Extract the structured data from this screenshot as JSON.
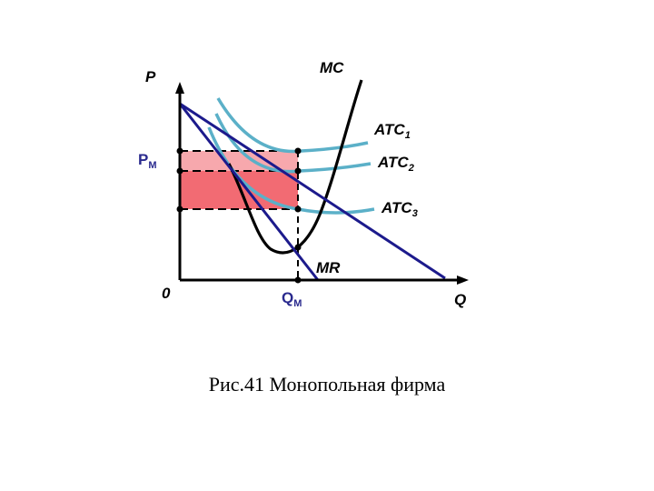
{
  "diagram": {
    "axis_y_label": "P",
    "axis_x_label": "Q",
    "origin_label": "0",
    "price_label_main": "P",
    "price_label_sub": "M",
    "quantity_label_main": "Q",
    "quantity_label_sub": "M",
    "mc_label": "MC",
    "mr_label": "MR",
    "atc_labels": [
      {
        "main": "ATC",
        "sub": "1"
      },
      {
        "main": "ATC",
        "sub": "2"
      },
      {
        "main": "ATC",
        "sub": "3"
      }
    ],
    "colors": {
      "demand_mr": "#1c1a8c",
      "atc": "#5bb0c8",
      "mc": "#000000",
      "profit_dark": "#f26b73",
      "profit_light": "#f7a8ad",
      "price_label": "#2a2a8e"
    }
  },
  "caption": "Рис.41 Монопольная фирма"
}
